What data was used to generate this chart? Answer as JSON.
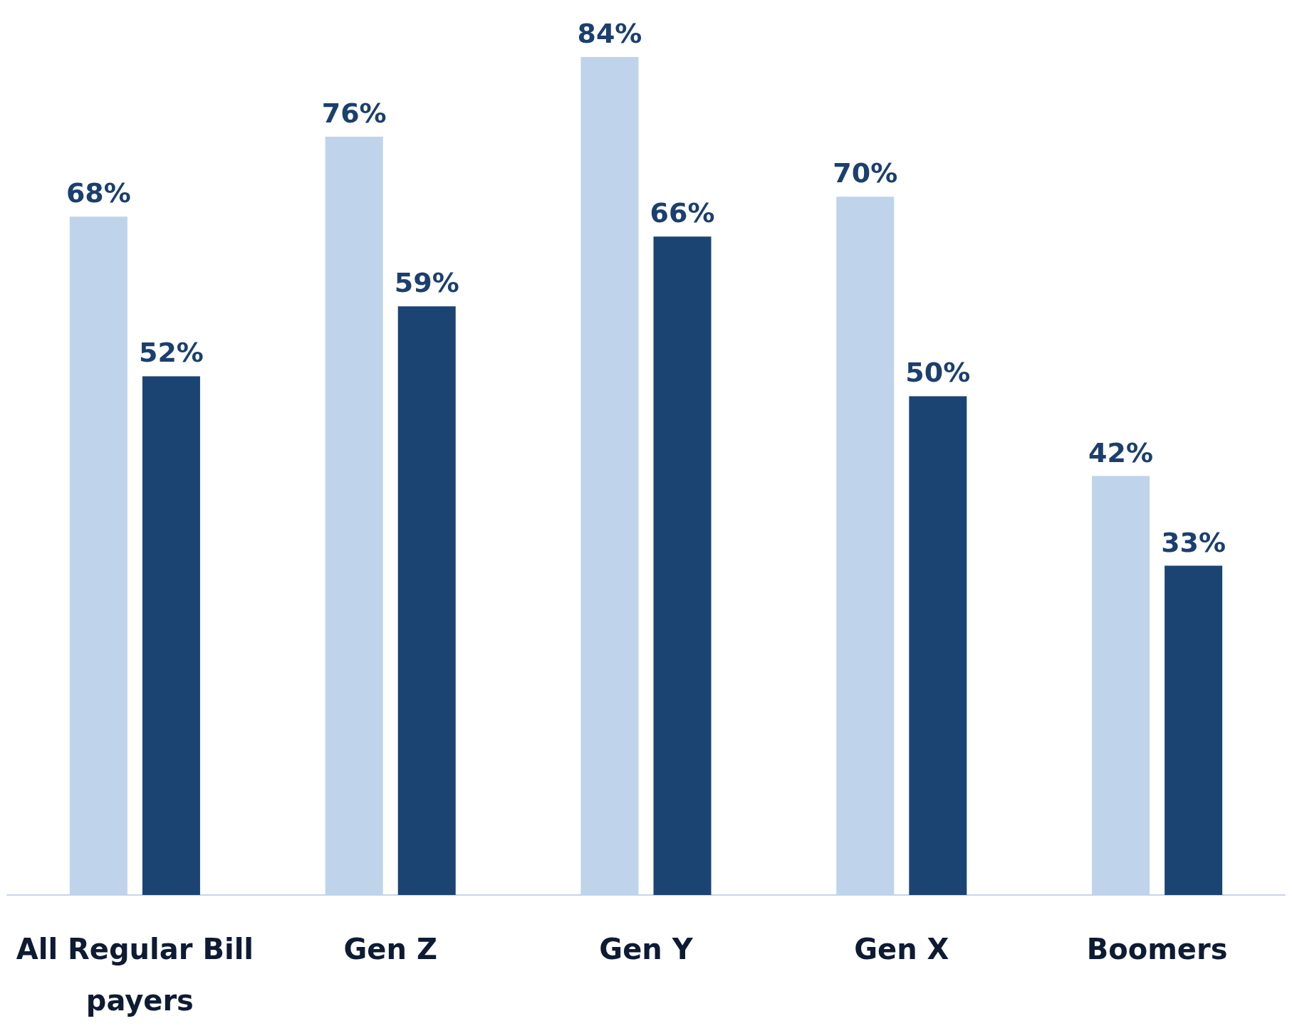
{
  "chart_data": {
    "type": "bar",
    "categories": [
      "All Regular Bill payers",
      "Gen Z",
      "Gen Y",
      "Gen X",
      "Boomers"
    ],
    "series": [
      {
        "color": "#bfd3eb",
        "values": [
          68,
          76,
          84,
          70,
          42
        ],
        "value_labels": [
          "68%",
          "76%",
          "84%",
          "70%",
          "42%"
        ]
      },
      {
        "color": "#1b4472",
        "values": [
          52,
          59,
          66,
          50,
          33
        ],
        "value_labels": [
          "52%",
          "59%",
          "66%",
          "50%",
          "33%"
        ]
      }
    ],
    "tick_labels": "x"
  }
}
